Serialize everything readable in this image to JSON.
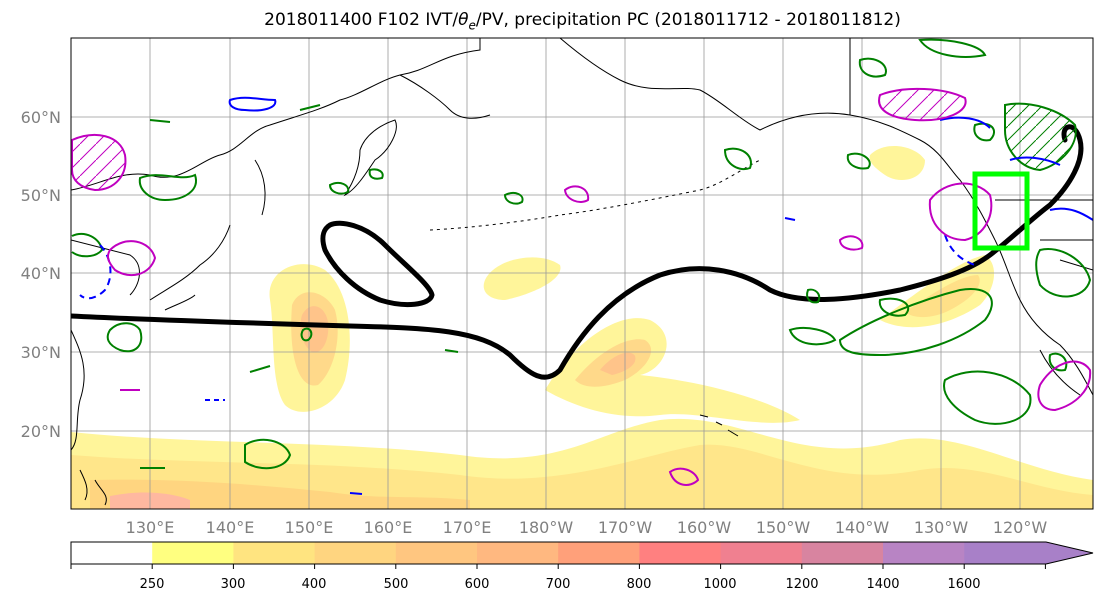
{
  "title": {
    "prefix": "2018011400 F102 IVT/",
    "theta": "θ",
    "sub": "e",
    "suffix": "/PV, precipitation PC (2018011712 - 2018011812)"
  },
  "lat_labels": [
    "60°N",
    "50°N",
    "40°N",
    "30°N",
    "20°N"
  ],
  "lon_labels": [
    "130°E",
    "140°E",
    "150°E",
    "160°E",
    "170°E",
    "180°W",
    "170°W",
    "160°W",
    "150°W",
    "140°W",
    "130°W",
    "120°W"
  ],
  "colorbar": {
    "tick_labels": [
      "250",
      "300",
      "400",
      "500",
      "600",
      "700",
      "800",
      "1000",
      "1200",
      "1400",
      "1600"
    ],
    "colors": [
      "#ffffff",
      "#ffff80",
      "#ffe480",
      "#ffd580",
      "#ffc680",
      "#ffb880",
      "#ffa07a",
      "#ff8080",
      "#f08090",
      "#d884a0",
      "#b884c4",
      "#a880c8"
    ]
  },
  "colors": {
    "ivt_low": "#fff59a",
    "ivt_mid": "#ffd77f",
    "ivt_high": "#ffb590",
    "pv_contour": "#000000",
    "theta_pos": "#008000",
    "theta_neg": "#0000ff",
    "precip_pc": "#c000c0",
    "target_box": "#00ff00"
  }
}
